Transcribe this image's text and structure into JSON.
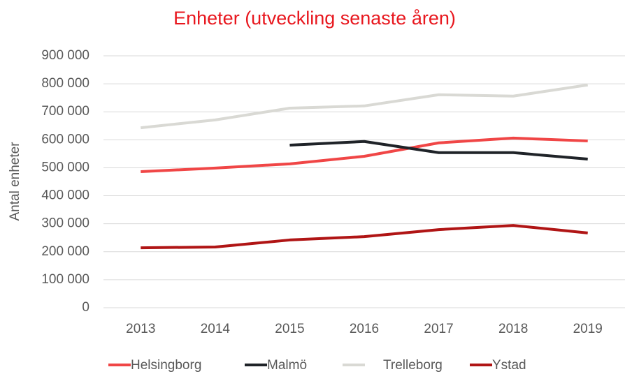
{
  "chart_data": {
    "type": "line",
    "title": "Enheter (utveckling senaste åren)",
    "y_label": "Antal enheter",
    "categories": [
      "2013",
      "2014",
      "2015",
      "2016",
      "2017",
      "2018",
      "2019"
    ],
    "series": [
      {
        "name": "Helsingborg",
        "color": "#f04646",
        "values": [
          486000,
          499000,
          514000,
          541000,
          589000,
          606000,
          596000
        ]
      },
      {
        "name": "Malmö",
        "color": "#1f2328",
        "values": [
          null,
          null,
          581000,
          594000,
          554000,
          554000,
          531000
        ]
      },
      {
        "name": "Trelleborg",
        "color": "#d9d9d4",
        "values": [
          643000,
          671000,
          713000,
          721000,
          761000,
          756000,
          796000
        ]
      },
      {
        "name": "Ystad",
        "color": "#b01515",
        "values": [
          214000,
          217000,
          242000,
          254000,
          279000,
          294000,
          267000
        ]
      }
    ],
    "ylim": [
      0,
      900000
    ],
    "yticks": [
      0,
      {
        "value": 100000,
        "label": "100 000"
      },
      {
        "value": 200000,
        "label": "200 000"
      },
      {
        "value": 300000,
        "label": "300 000"
      },
      {
        "value": 400000,
        "label": "400 000"
      },
      {
        "value": 500000,
        "label": "500 000"
      },
      {
        "value": 600000,
        "label": "600 000"
      },
      {
        "value": 700000,
        "label": "700 000"
      },
      {
        "value": 800000,
        "label": "800 000"
      },
      {
        "value": 900000,
        "label": "900 000"
      }
    ],
    "grid": true,
    "legend": "bottom"
  }
}
